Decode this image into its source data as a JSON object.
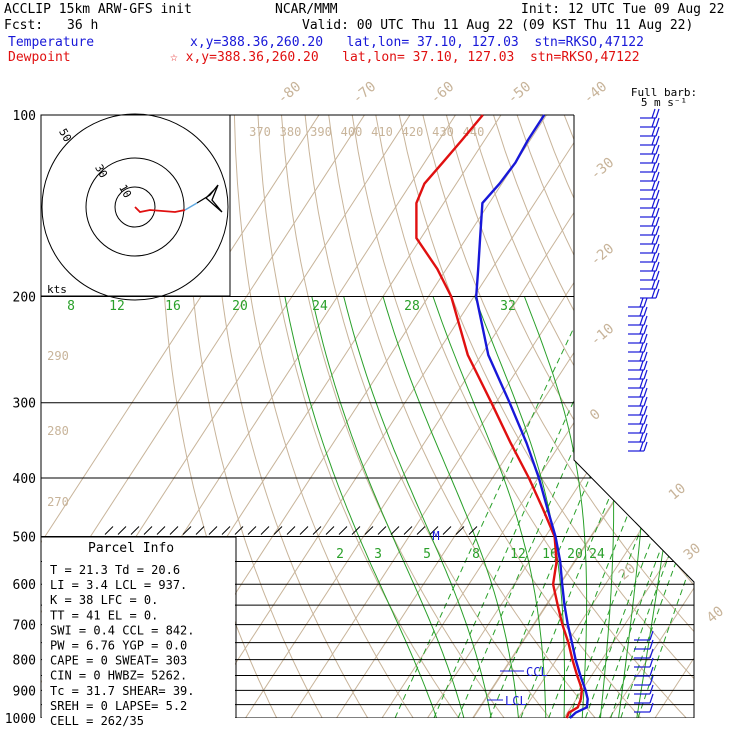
{
  "header": {
    "model": "ACCLIP 15km ARW-GFS init",
    "fcst_label": "Fcst:",
    "fcst_value": "36 h",
    "org": "NCAR/MMM",
    "init": "Init: 12 UTC Tue 09 Aug 22",
    "valid": "Valid: 00 UTC Thu 11 Aug 22 (09 KST Thu 11 Aug 22)",
    "temp_label": "Temperature",
    "temp_info": "x,y=388.36,260.20   lat,lon= 37.10, 127.03  stn=RKSO,47122",
    "dew_label": "Dewpoint",
    "dew_info": "☆ x,y=388.36,260.20   lat,lon= 37.10, 127.03  stn=RKSO,47122"
  },
  "barb_legend": {
    "line1": "Full barb:",
    "line2": "5 m s⁻¹"
  },
  "hodograph": {
    "rings": [
      "10",
      "30",
      "50"
    ],
    "unit": "kts"
  },
  "pressure_labels": [
    "100",
    "200",
    "300",
    "400",
    "500",
    "600",
    "700",
    "800",
    "900",
    "1000"
  ],
  "temperature_labels": [
    "-80",
    "-70",
    "-60",
    "-50",
    "-40",
    "-30",
    "-20",
    "-10",
    "0",
    "10",
    "20",
    "30",
    "40"
  ],
  "theta_labels_top": [
    "370",
    "380",
    "390",
    "400",
    "410",
    "420",
    "430",
    "440"
  ],
  "theta_labels_left": [
    "290",
    "280",
    "270"
  ],
  "mixing_ratio_labels_upper": [
    "8",
    "12",
    "16",
    "20",
    "24",
    "28",
    "32"
  ],
  "mixing_ratio_labels_lower": [
    "2",
    "3",
    "5",
    "8",
    "12",
    "16",
    "20",
    "24"
  ],
  "markers": {
    "ccl": "CCL",
    "lcl": "LCL",
    "m": "M"
  },
  "parcel_info": {
    "title": "Parcel Info",
    "rows": [
      "T  =   21.3  Td =  20.6",
      "LI =    3.4  LCL =  937.",
      "K  =     38  LFC =    0.",
      "TT =     41  EL  =    0.",
      "SWI =   0.4  CCL =  842.",
      "PW =   6.76  YGP =   0.0",
      "CAPE =    0  SWEAT=  303",
      "CIN =     0  HWBZ= 5262.",
      "Tc =   31.7  SHEAR=  39.",
      "SREH =    0  LAPSE=  5.2",
      "CELL = 262/35"
    ]
  },
  "colors": {
    "temperature": "#1818d8",
    "dewpoint": "#e01010",
    "dry_adiabat": "#c8b49a",
    "mixing_ratio": "#2aa02a",
    "isobar": "#000000"
  },
  "chart_data": {
    "type": "line",
    "subtype": "skew-T log-P sounding",
    "y_axis": "pressure (hPa), logarithmic, reversed",
    "ylim": [
      1000,
      100
    ],
    "series": [
      {
        "name": "Temperature",
        "pressure": [
          1000,
          980,
          960,
          930,
          900,
          880,
          850,
          800,
          750,
          700,
          650,
          600,
          550,
          500,
          450,
          400,
          350,
          300,
          250,
          200,
          180,
          160,
          140,
          130,
          120,
          110,
          100
        ],
        "temperature": [
          21.3,
          21.8,
          23.5,
          22.5,
          20.8,
          19.5,
          17.5,
          14.2,
          11.0,
          7.5,
          4.0,
          0.5,
          -3.2,
          -7.8,
          -13.5,
          -19.8,
          -27.5,
          -37.0,
          -48.5,
          -59.5,
          -63.0,
          -67.0,
          -71.5,
          -70.5,
          -70.0,
          -70.5,
          -70.5
        ]
      },
      {
        "name": "Dewpoint",
        "pressure": [
          1000,
          980,
          960,
          930,
          900,
          880,
          850,
          800,
          750,
          700,
          650,
          600,
          550,
          500,
          450,
          400,
          350,
          300,
          250,
          200,
          180,
          160,
          140,
          130,
          120,
          110,
          100
        ],
        "temperature": [
          20.6,
          20.3,
          21.5,
          21.0,
          20.0,
          18.8,
          16.8,
          13.5,
          10.2,
          6.3,
          2.5,
          -1.5,
          -4.0,
          -8.0,
          -14.5,
          -22.0,
          -31.0,
          -41.0,
          -53.0,
          -65.0,
          -72.0,
          -81.0,
          -86.0,
          -87.0,
          -86.0,
          -85.0,
          -84.0
        ]
      }
    ]
  }
}
